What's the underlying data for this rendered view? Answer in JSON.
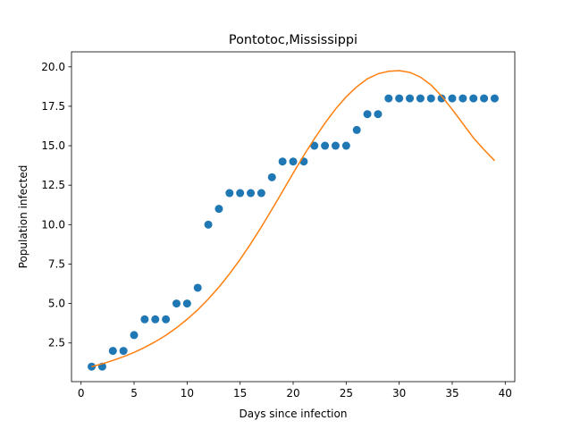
{
  "chart_data": {
    "type": "scatter",
    "title": "Pontotoc,Mississippi",
    "xlabel": "Days since infection",
    "ylabel": "Population infected",
    "xlim": [
      -0.9,
      40.9
    ],
    "ylim": [
      0.05,
      20.95
    ],
    "xticks": [
      0,
      5,
      10,
      15,
      20,
      25,
      30,
      35,
      40
    ],
    "yticks": [
      2.5,
      5.0,
      7.5,
      10.0,
      12.5,
      15.0,
      17.5,
      20.0
    ],
    "xtick_labels": [
      "0",
      "5",
      "10",
      "15",
      "20",
      "25",
      "30",
      "35",
      "40"
    ],
    "ytick_labels": [
      "2.5",
      "5.0",
      "7.5",
      "10.0",
      "12.5",
      "15.0",
      "17.5",
      "20.0"
    ],
    "grid": false,
    "legend": "none",
    "series": [
      {
        "type": "scatter",
        "color": "#1f77b4",
        "x": [
          1,
          2,
          3,
          4,
          5,
          6,
          7,
          8,
          9,
          10,
          11,
          12,
          13,
          14,
          15,
          16,
          17,
          18,
          19,
          20,
          21,
          22,
          23,
          24,
          25,
          26,
          27,
          28,
          29,
          30,
          31,
          32,
          33,
          34,
          35,
          36,
          37,
          38,
          39
        ],
        "y": [
          1,
          1,
          2,
          2,
          3,
          4,
          4,
          4,
          5,
          5,
          6,
          10,
          11,
          12,
          12,
          12,
          12,
          13,
          14,
          14,
          14,
          15,
          15,
          15,
          15,
          16,
          17,
          17,
          18,
          18,
          18,
          18,
          18,
          18,
          18,
          18,
          18,
          18,
          18
        ]
      },
      {
        "type": "line",
        "color": "#ff7f0e",
        "x": [
          1,
          2,
          3,
          4,
          5,
          6,
          7,
          8,
          9,
          10,
          11,
          12,
          13,
          14,
          15,
          16,
          17,
          18,
          19,
          20,
          21,
          22,
          23,
          24,
          25,
          26,
          27,
          28,
          29,
          30,
          31,
          32,
          33,
          34,
          35,
          36,
          37,
          38,
          39
        ],
        "y": [
          1.0,
          1.18,
          1.39,
          1.63,
          1.9,
          2.22,
          2.58,
          2.99,
          3.46,
          4.0,
          4.6,
          5.28,
          6.04,
          6.88,
          7.8,
          8.79,
          9.85,
          10.97,
          12.11,
          13.26,
          14.38,
          15.44,
          16.43,
          17.33,
          18.1,
          18.74,
          19.24,
          19.56,
          19.72,
          19.76,
          19.65,
          19.35,
          18.85,
          18.15,
          17.3,
          16.4,
          15.5,
          14.75,
          14.05
        ]
      }
    ]
  }
}
